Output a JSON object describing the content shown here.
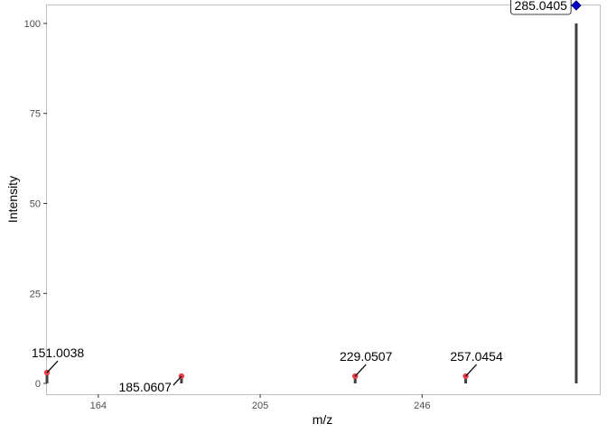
{
  "chart_data": {
    "type": "bar",
    "xlabel": "m/z",
    "ylabel": "Intensity",
    "xlim": [
      151,
      291
    ],
    "ylim": [
      -3,
      105
    ],
    "x_ticks": [
      164,
      205,
      246
    ],
    "y_ticks": [
      0,
      25,
      50,
      75,
      100
    ],
    "grid": false,
    "series": [
      {
        "x": [
          151.0038,
          185.0607,
          229.0507,
          257.0454,
          285.0405
        ],
        "values": [
          3,
          2,
          2,
          2,
          100
        ]
      }
    ],
    "peak_labels": [
      "151.0038",
      "185.0607",
      "229.0507",
      "257.0454",
      "285.0405"
    ],
    "precursor_label": "285.0405",
    "colors": {
      "bar": "#404040",
      "fragment_point": "#e8404a",
      "precursor_marker": "#0000cc",
      "panel_border": "#bfbfbf"
    }
  }
}
